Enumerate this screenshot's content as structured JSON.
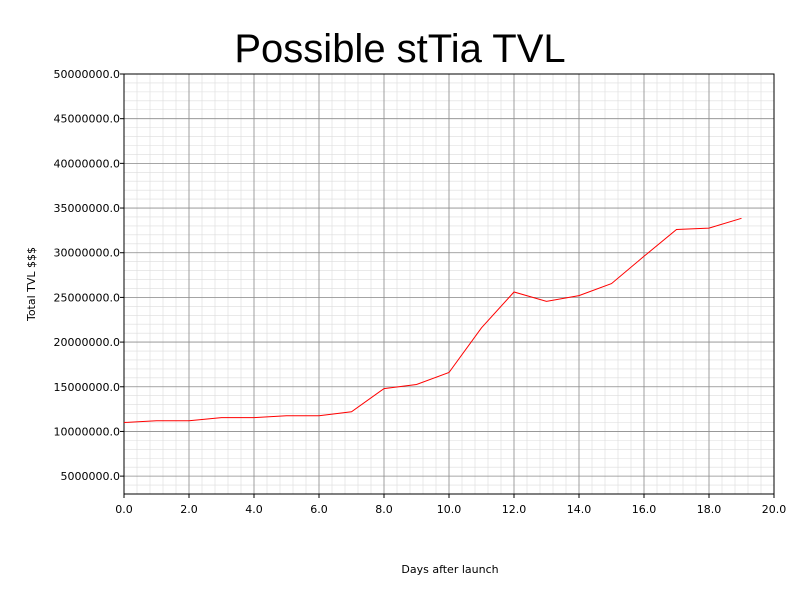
{
  "chart_data": {
    "type": "line",
    "title": "Possible stTia TVL",
    "xlabel": "Days after launch",
    "ylabel": "Total TVL $$$",
    "xlim": [
      0,
      20
    ],
    "ylim": [
      3000000,
      50000000
    ],
    "grid": true,
    "colors": {
      "line": "#ff0000",
      "major_grid": "#8c8c8c",
      "minor_grid": "#dcdcdc",
      "frame": "#000000"
    },
    "x_ticks": [
      {
        "value": 0,
        "label": "0.0"
      },
      {
        "value": 2,
        "label": "2.0"
      },
      {
        "value": 4,
        "label": "4.0"
      },
      {
        "value": 6,
        "label": "6.0"
      },
      {
        "value": 8,
        "label": "8.0"
      },
      {
        "value": 10,
        "label": "10.0"
      },
      {
        "value": 12,
        "label": "12.0"
      },
      {
        "value": 14,
        "label": "14.0"
      },
      {
        "value": 16,
        "label": "16.0"
      },
      {
        "value": 18,
        "label": "18.0"
      },
      {
        "value": 20,
        "label": "20.0"
      }
    ],
    "y_ticks": [
      {
        "value": 5000000,
        "label": "5000000.0"
      },
      {
        "value": 10000000,
        "label": "10000000.0"
      },
      {
        "value": 15000000,
        "label": "15000000.0"
      },
      {
        "value": 20000000,
        "label": "20000000.0"
      },
      {
        "value": 25000000,
        "label": "25000000.0"
      },
      {
        "value": 30000000,
        "label": "30000000.0"
      },
      {
        "value": 35000000,
        "label": "35000000.0"
      },
      {
        "value": 40000000,
        "label": "40000000.0"
      },
      {
        "value": 45000000,
        "label": "45000000.0"
      },
      {
        "value": 50000000,
        "label": "50000000.0"
      }
    ],
    "series": [
      {
        "x": [
          0,
          1,
          2,
          3,
          4,
          5,
          6,
          7,
          8,
          9,
          10,
          11,
          12,
          13,
          14,
          15,
          16,
          17,
          18,
          19
        ],
        "values": [
          11000000,
          11200000,
          11200000,
          11550000,
          11550000,
          11750000,
          11750000,
          12200000,
          14800000,
          15250000,
          16600000,
          21600000,
          25600000,
          24550000,
          25200000,
          26550000,
          29600000,
          32600000,
          32750000,
          33850000
        ]
      }
    ]
  }
}
